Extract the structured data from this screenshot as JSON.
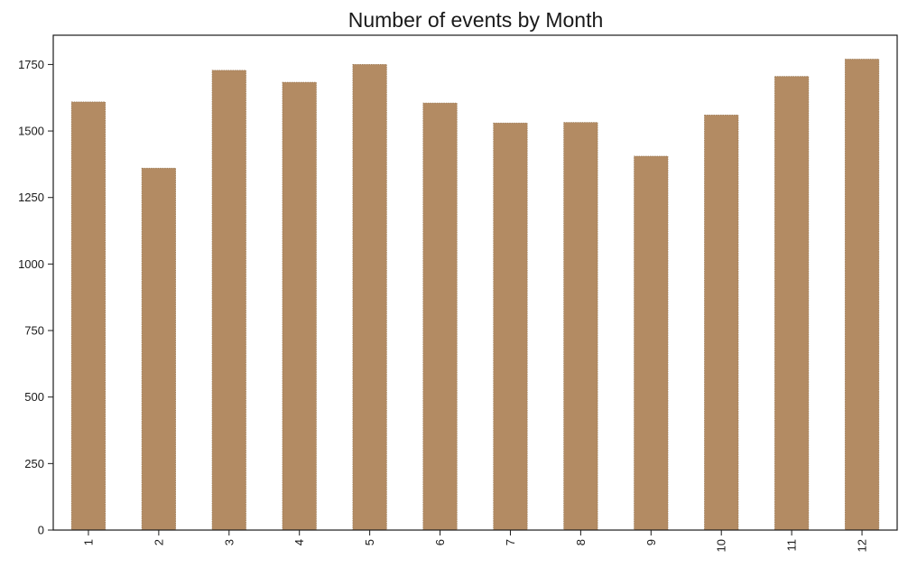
{
  "chart_data": {
    "type": "bar",
    "title": "Number of events by Month",
    "xlabel": "",
    "ylabel": "",
    "categories": [
      "1",
      "2",
      "3",
      "4",
      "5",
      "6",
      "7",
      "8",
      "9",
      "10",
      "11",
      "12"
    ],
    "values": [
      1609,
      1360,
      1728,
      1683,
      1750,
      1605,
      1530,
      1532,
      1405,
      1560,
      1705,
      1770
    ],
    "ylim": [
      0,
      1860
    ],
    "yticks": [
      0,
      250,
      500,
      750,
      1000,
      1250,
      1500,
      1750
    ],
    "bar_color": "#b38b63",
    "bar_edge_color": "#9c7a55",
    "grid": false,
    "legend": "none",
    "xtick_rotation": "vertical"
  }
}
